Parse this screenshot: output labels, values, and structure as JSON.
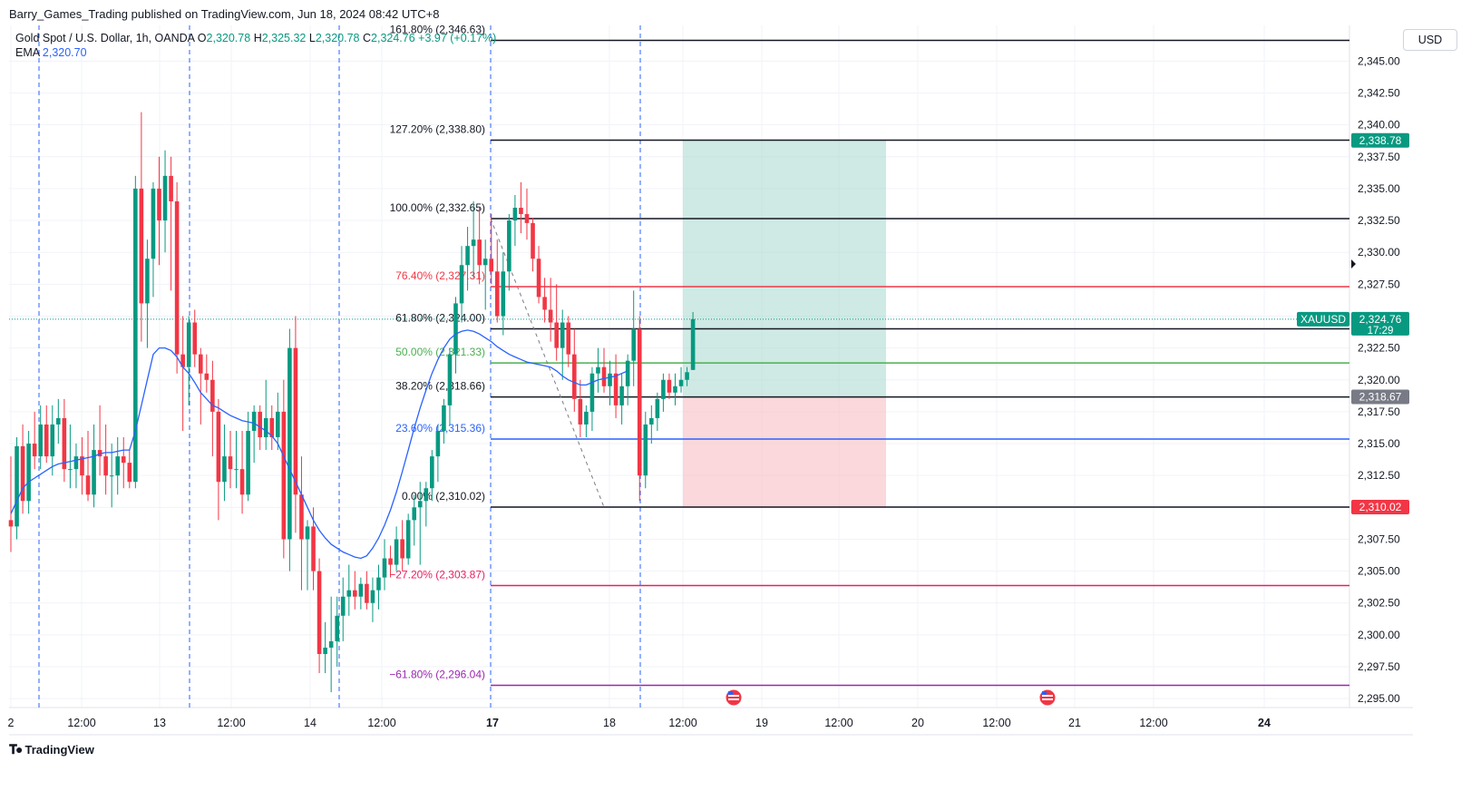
{
  "header": {
    "published": "Barry_Games_Trading published on TradingView.com, Jun 18, 2024 08:42 UTC+8"
  },
  "legend": {
    "symbol": "Gold Spot / U.S. Dollar, 1h, OANDA",
    "o_label": "O",
    "o_value": "2,320.78",
    "h_label": "H",
    "h_value": "2,325.32",
    "l_label": "L",
    "l_value": "2,320.78",
    "c_label": "C",
    "c_value": "2,324.76",
    "change": "+3.97 (+0.17%)",
    "ema_label": "EMA",
    "ema_value": "2,320.70"
  },
  "currency": "USD",
  "branding": {
    "logo_text": "TradingView"
  },
  "colors": {
    "up": "#089981",
    "down": "#f23645",
    "ema": "#2962ff",
    "fib_black": "#131722",
    "fib_red": "#f23645",
    "fib_green": "#4caf50",
    "fib_blue": "#2962ff",
    "fib_pink": "#e91e63",
    "fib_purple": "#9c27b0",
    "session_line": "#2962ff",
    "target_zone": "#9fd6c9",
    "stop_zone": "#f7c3c8"
  },
  "chart_data": {
    "type": "candlestick",
    "symbol": "XAUUSD",
    "timeframe": "1h",
    "ylim": [
      2294.3,
      2347.8
    ],
    "y_ticks": [
      "2,295.00",
      "2,297.50",
      "2,300.00",
      "2,302.50",
      "2,305.00",
      "2,307.50",
      "2,310.00",
      "2,312.50",
      "2,315.00",
      "2,317.50",
      "2,320.00",
      "2,322.50",
      "2,325.00",
      "2,327.50",
      "2,330.00",
      "2,332.50",
      "2,335.00",
      "2,337.50",
      "2,340.00",
      "2,342.50",
      "2,345.00"
    ],
    "x_ticks": [
      "2",
      "12:00",
      "13",
      "12:00",
      "14",
      "12:00",
      "17",
      "18",
      "12:00",
      "19",
      "12:00",
      "20",
      "12:00",
      "21",
      "12:00",
      "24"
    ],
    "x_ticks_bold": [
      "17",
      "24"
    ],
    "candles": [
      [
        2309.0,
        2314.0,
        2306.5,
        2308.5
      ],
      [
        2308.5,
        2315.5,
        2307.5,
        2314.8
      ],
      [
        2314.8,
        2316.5,
        2309.5,
        2310.5
      ],
      [
        2310.5,
        2316.0,
        2309.5,
        2315.0
      ],
      [
        2315.0,
        2317.5,
        2313.0,
        2314.0
      ],
      [
        2314.0,
        2318.0,
        2313.0,
        2316.5
      ],
      [
        2316.5,
        2318.0,
        2313.5,
        2314.0
      ],
      [
        2314.0,
        2318.0,
        2312.5,
        2316.5
      ],
      [
        2316.5,
        2318.5,
        2315.0,
        2317.0
      ],
      [
        2317.0,
        2318.5,
        2312.0,
        2313.0
      ],
      [
        2313.0,
        2316.5,
        2311.5,
        2313.0
      ],
      [
        2313.0,
        2315.0,
        2311.5,
        2314.0
      ],
      [
        2314.0,
        2315.5,
        2311.0,
        2312.5
      ],
      [
        2312.5,
        2316.0,
        2310.5,
        2311.0
      ],
      [
        2311.0,
        2316.5,
        2310.0,
        2314.5
      ],
      [
        2314.5,
        2318.0,
        2312.5,
        2314.0
      ],
      [
        2314.0,
        2316.5,
        2311.0,
        2312.5
      ],
      [
        2312.5,
        2315.0,
        2310.0,
        2312.5
      ],
      [
        2312.5,
        2315.5,
        2311.0,
        2314.0
      ],
      [
        2314.0,
        2315.5,
        2311.5,
        2313.5
      ],
      [
        2313.5,
        2314.5,
        2311.5,
        2312.0
      ],
      [
        2312.0,
        2336.0,
        2311.5,
        2335.0
      ],
      [
        2335.0,
        2341.0,
        2323.0,
        2326.0
      ],
      [
        2326.0,
        2331.0,
        2322.5,
        2329.5
      ],
      [
        2329.5,
        2335.5,
        2326.5,
        2335.0
      ],
      [
        2335.0,
        2337.5,
        2329.0,
        2332.5
      ],
      [
        2332.5,
        2338.0,
        2330.0,
        2336.0
      ],
      [
        2336.0,
        2337.5,
        2327.0,
        2334.0
      ],
      [
        2334.0,
        2335.5,
        2320.5,
        2322.0
      ],
      [
        2322.0,
        2325.0,
        2316.0,
        2321.0
      ],
      [
        2321.0,
        2325.0,
        2318.0,
        2324.5
      ],
      [
        2324.5,
        2325.5,
        2321.0,
        2322.0
      ],
      [
        2322.0,
        2322.5,
        2316.5,
        2320.5
      ],
      [
        2320.5,
        2322.0,
        2319.0,
        2320.0
      ],
      [
        2320.0,
        2321.5,
        2314.0,
        2317.5
      ],
      [
        2317.5,
        2318.5,
        2309.0,
        2312.0
      ],
      [
        2312.0,
        2316.5,
        2310.5,
        2314.0
      ],
      [
        2314.0,
        2316.0,
        2311.5,
        2313.0
      ],
      [
        2313.0,
        2316.0,
        2311.5,
        2313.0
      ],
      [
        2313.0,
        2316.0,
        2309.5,
        2311.0
      ],
      [
        2311.0,
        2317.5,
        2310.5,
        2316.0
      ],
      [
        2316.0,
        2318.0,
        2313.5,
        2317.5
      ],
      [
        2317.5,
        2318.0,
        2314.5,
        2315.5
      ],
      [
        2315.5,
        2320.0,
        2314.5,
        2317.0
      ],
      [
        2317.0,
        2318.0,
        2314.5,
        2315.5
      ],
      [
        2315.5,
        2319.0,
        2314.5,
        2317.5
      ],
      [
        2317.5,
        2320.0,
        2306.0,
        2307.5
      ],
      [
        2307.5,
        2324.0,
        2305.0,
        2322.5
      ],
      [
        2322.5,
        2325.0,
        2308.0,
        2311.0
      ],
      [
        2311.0,
        2314.0,
        2303.5,
        2307.5
      ],
      [
        2307.5,
        2309.0,
        2303.5,
        2308.5
      ],
      [
        2308.5,
        2310.0,
        2303.5,
        2305.0
      ],
      [
        2305.0,
        2306.0,
        2297.0,
        2298.5
      ],
      [
        2298.5,
        2301.0,
        2297.0,
        2299.0
      ],
      [
        2299.0,
        2303.0,
        2295.5,
        2299.5
      ],
      [
        2299.5,
        2303.0,
        2297.5,
        2301.5
      ],
      [
        2301.5,
        2304.5,
        2299.5,
        2303.0
      ],
      [
        2303.0,
        2305.5,
        2301.5,
        2303.5
      ],
      [
        2303.5,
        2305.0,
        2302.0,
        2303.0
      ],
      [
        2303.0,
        2304.5,
        2302.0,
        2304.0
      ],
      [
        2304.0,
        2305.0,
        2302.0,
        2302.5
      ],
      [
        2302.5,
        2304.5,
        2301.0,
        2303.5
      ],
      [
        2303.5,
        2305.5,
        2302.0,
        2304.5
      ],
      [
        2304.5,
        2307.5,
        2303.5,
        2306.0
      ],
      [
        2306.0,
        2307.0,
        2304.5,
        2305.5
      ],
      [
        2305.5,
        2308.5,
        2305.0,
        2307.5
      ],
      [
        2307.5,
        2309.0,
        2305.0,
        2306.0
      ],
      [
        2306.0,
        2309.5,
        2305.5,
        2309.0
      ],
      [
        2309.0,
        2311.0,
        2307.0,
        2310.0
      ],
      [
        2310.0,
        2312.0,
        2305.5,
        2310.5
      ],
      [
        2310.5,
        2312.0,
        2308.5,
        2311.5
      ],
      [
        2311.5,
        2314.5,
        2310.5,
        2314.0
      ],
      [
        2314.0,
        2316.5,
        2312.0,
        2316.0
      ],
      [
        2316.0,
        2318.5,
        2315.0,
        2318.0
      ],
      [
        2318.0,
        2322.5,
        2316.5,
        2322.0
      ],
      [
        2322.0,
        2326.5,
        2320.5,
        2326.0
      ],
      [
        2326.0,
        2330.5,
        2324.5,
        2329.0
      ],
      [
        2329.0,
        2332.0,
        2327.0,
        2330.5
      ],
      [
        2330.5,
        2334.0,
        2328.0,
        2331.0
      ],
      [
        2331.0,
        2333.5,
        2327.5,
        2329.0
      ],
      [
        2329.0,
        2331.0,
        2325.5,
        2329.5
      ],
      [
        2329.5,
        2333.0,
        2327.5,
        2328.5
      ],
      [
        2328.5,
        2331.0,
        2324.5,
        2325.0
      ],
      [
        2325.0,
        2330.0,
        2323.5,
        2328.5
      ],
      [
        2328.5,
        2333.0,
        2327.0,
        2332.5
      ],
      [
        2332.5,
        2334.5,
        2330.5,
        2333.5
      ],
      [
        2333.5,
        2335.5,
        2331.5,
        2333.0
      ],
      [
        2333.0,
        2335.0,
        2331.0,
        2332.3
      ],
      [
        2332.3,
        2332.7,
        2328.5,
        2329.5
      ],
      [
        2329.5,
        2330.5,
        2326.0,
        2326.5
      ],
      [
        2326.5,
        2328.0,
        2324.5,
        2325.5
      ],
      [
        2325.5,
        2328.0,
        2323.0,
        2324.5
      ],
      [
        2324.5,
        2327.5,
        2321.5,
        2322.5
      ],
      [
        2322.5,
        2325.5,
        2320.0,
        2324.5
      ],
      [
        2324.5,
        2325.0,
        2321.0,
        2322.0
      ],
      [
        2322.0,
        2324.0,
        2317.5,
        2318.5
      ],
      [
        2318.5,
        2320.0,
        2315.5,
        2316.5
      ],
      [
        2316.5,
        2318.0,
        2315.5,
        2317.5
      ],
      [
        2317.5,
        2321.0,
        2316.0,
        2320.5
      ],
      [
        2320.5,
        2322.5,
        2319.0,
        2321.0
      ],
      [
        2321.0,
        2322.5,
        2319.0,
        2319.5
      ],
      [
        2319.5,
        2321.5,
        2318.0,
        2320.5
      ],
      [
        2320.5,
        2322.0,
        2317.0,
        2318.0
      ],
      [
        2318.0,
        2320.5,
        2316.5,
        2319.5
      ],
      [
        2319.5,
        2322.0,
        2318.0,
        2321.5
      ],
      [
        2321.5,
        2327.0,
        2319.5,
        2324.0
      ],
      [
        2324.0,
        2325.0,
        2310.5,
        2312.5
      ],
      [
        2312.5,
        2317.5,
        2311.5,
        2316.5
      ],
      [
        2316.5,
        2318.0,
        2315.0,
        2317.0
      ],
      [
        2317.0,
        2319.0,
        2316.0,
        2318.5
      ],
      [
        2318.5,
        2320.5,
        2317.5,
        2320.0
      ],
      [
        2320.0,
        2320.5,
        2318.5,
        2319.0
      ],
      [
        2319.0,
        2320.5,
        2318.0,
        2319.5
      ],
      [
        2319.5,
        2321.0,
        2319.0,
        2320.0
      ],
      [
        2320.0,
        2321.0,
        2319.5,
        2320.6
      ],
      [
        2320.78,
        2325.32,
        2320.78,
        2324.76
      ]
    ],
    "ema": [
      2309.5,
      2310.5,
      2311.5,
      2312.0,
      2312.3,
      2312.6,
      2312.9,
      2313.2,
      2313.4,
      2313.5,
      2313.6,
      2313.7,
      2313.8,
      2313.9,
      2314.0,
      2314.2,
      2314.3,
      2314.3,
      2314.4,
      2314.5,
      2314.5,
      2316.0,
      2318.0,
      2320.0,
      2322.0,
      2322.5,
      2322.5,
      2322.3,
      2321.8,
      2321.0,
      2320.5,
      2319.8,
      2319.0,
      2318.5,
      2318.0,
      2317.8,
      2317.5,
      2317.2,
      2317.0,
      2316.8,
      2316.7,
      2316.6,
      2316.3,
      2316.0,
      2315.6,
      2315.0,
      2314.0,
      2313.0,
      2312.0,
      2311.0,
      2310.0,
      2309.0,
      2308.2,
      2307.6,
      2307.1,
      2306.8,
      2306.5,
      2306.3,
      2306.1,
      2306.0,
      2306.2,
      2306.8,
      2307.6,
      2308.6,
      2309.8,
      2311.2,
      2312.8,
      2314.5,
      2316.2,
      2317.8,
      2319.2,
      2320.5,
      2321.6,
      2322.5,
      2323.2,
      2323.6,
      2323.8,
      2323.9,
      2323.8,
      2323.6,
      2323.3,
      2323.0,
      2322.6,
      2322.3,
      2322.0,
      2321.8,
      2321.6,
      2321.4,
      2321.3,
      2321.2,
      2321.1,
      2321.0,
      2320.7,
      2320.3,
      2320.0,
      2319.8,
      2319.6,
      2319.6,
      2319.8,
      2320.0,
      2320.1,
      2320.2,
      2320.3,
      2320.5,
      2320.7
    ],
    "ema_period_start_index": 0,
    "fib_levels": [
      {
        "ratio": "161.80%",
        "price": 2346.63,
        "label": "161.80% (2,346.63)",
        "color": "#131722"
      },
      {
        "ratio": "127.20%",
        "price": 2338.8,
        "label": "127.20% (2,338.80)",
        "color": "#131722"
      },
      {
        "ratio": "100.00%",
        "price": 2332.65,
        "label": "100.00% (2,332.65)",
        "color": "#131722"
      },
      {
        "ratio": "76.40%",
        "price": 2327.31,
        "label": "76.40% (2,327.31)",
        "color": "#f23645"
      },
      {
        "ratio": "61.80%",
        "price": 2324.0,
        "label": "61.80% (2,324.00)",
        "color": "#131722"
      },
      {
        "ratio": "50.00%",
        "price": 2321.33,
        "label": "50.00% (2,321.33)",
        "color": "#4caf50"
      },
      {
        "ratio": "38.20%",
        "price": 2318.66,
        "label": "38.20% (2,318.66)",
        "color": "#131722"
      },
      {
        "ratio": "23.60%",
        "price": 2315.36,
        "label": "23.60% (2,315.36)",
        "color": "#2962ff"
      },
      {
        "ratio": "0.00%",
        "price": 2310.02,
        "label": "0.00% (2,310.02)",
        "color": "#131722"
      },
      {
        "ratio": "-27.20%",
        "price": 2303.87,
        "label": "−27.20% (2,303.87)",
        "color": "#e91e63"
      },
      {
        "ratio": "-61.80%",
        "price": 2296.04,
        "label": "−61.80% (2,296.04)",
        "color": "#9c27b0"
      }
    ],
    "fib_anchor": {
      "from_price": 2332.65,
      "to_price": 2310.02
    },
    "position": {
      "entry": 2318.67,
      "target": 2338.78,
      "stop": 2310.02
    },
    "price_tags": [
      {
        "price": 2338.78,
        "label": "2,338.78",
        "bg": "#089981"
      },
      {
        "price": 2324.76,
        "label": "2,324.76",
        "sub": "17:29",
        "bg": "#089981",
        "symbol": "XAUUSD"
      },
      {
        "price": 2318.67,
        "label": "2,318.67",
        "bg": "#787b86"
      },
      {
        "price": 2310.02,
        "label": "2,310.02",
        "bg": "#f23645"
      }
    ],
    "event_markers": 2,
    "grid": true
  }
}
